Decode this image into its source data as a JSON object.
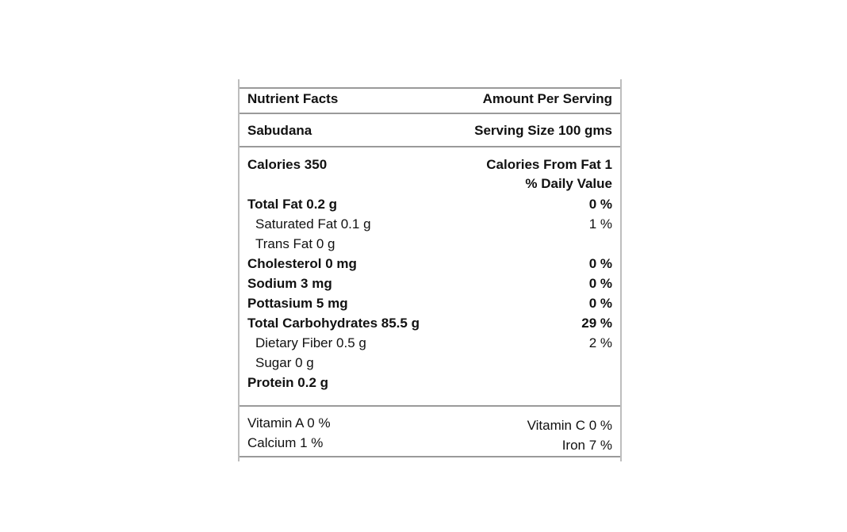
{
  "header": {
    "title": "Nutrient Facts",
    "amount_per_serving": "Amount Per Serving"
  },
  "product": {
    "name": "Sabudana",
    "serving_size": "Serving Size 100 gms"
  },
  "calories": {
    "label": "Calories 350",
    "from_fat": "Calories From Fat 1",
    "daily_value_header": "% Daily Value"
  },
  "nutrients": [
    {
      "label": "Total Fat 0.2 g",
      "dv": "0 %",
      "bold": true
    },
    {
      "label": "Saturated Fat 0.1 g",
      "dv": "1 %",
      "bold": false
    },
    {
      "label": "Trans Fat 0 g",
      "dv": "",
      "bold": false
    },
    {
      "label": "Cholesterol 0 mg",
      "dv": "0 %",
      "bold": true
    },
    {
      "label": "Sodium 3 mg",
      "dv": "0 %",
      "bold": true
    },
    {
      "label": "Pottasium 5 mg",
      "dv": "0 %",
      "bold": true
    },
    {
      "label": "Total Carbohydrates 85.5 g",
      "dv": "29 %",
      "bold": true
    },
    {
      "label": "Dietary Fiber 0.5 g",
      "dv": "2 %",
      "bold": false
    },
    {
      "label": "Sugar 0 g",
      "dv": "",
      "bold": false
    },
    {
      "label": "Protein 0.2 g",
      "dv": "",
      "bold": true
    }
  ],
  "vitamins": [
    {
      "left": "Vitamin A 0 %",
      "right": "Vitamin C 0 %"
    },
    {
      "left": "Calcium 1 %",
      "right": "Iron 7 %"
    }
  ]
}
